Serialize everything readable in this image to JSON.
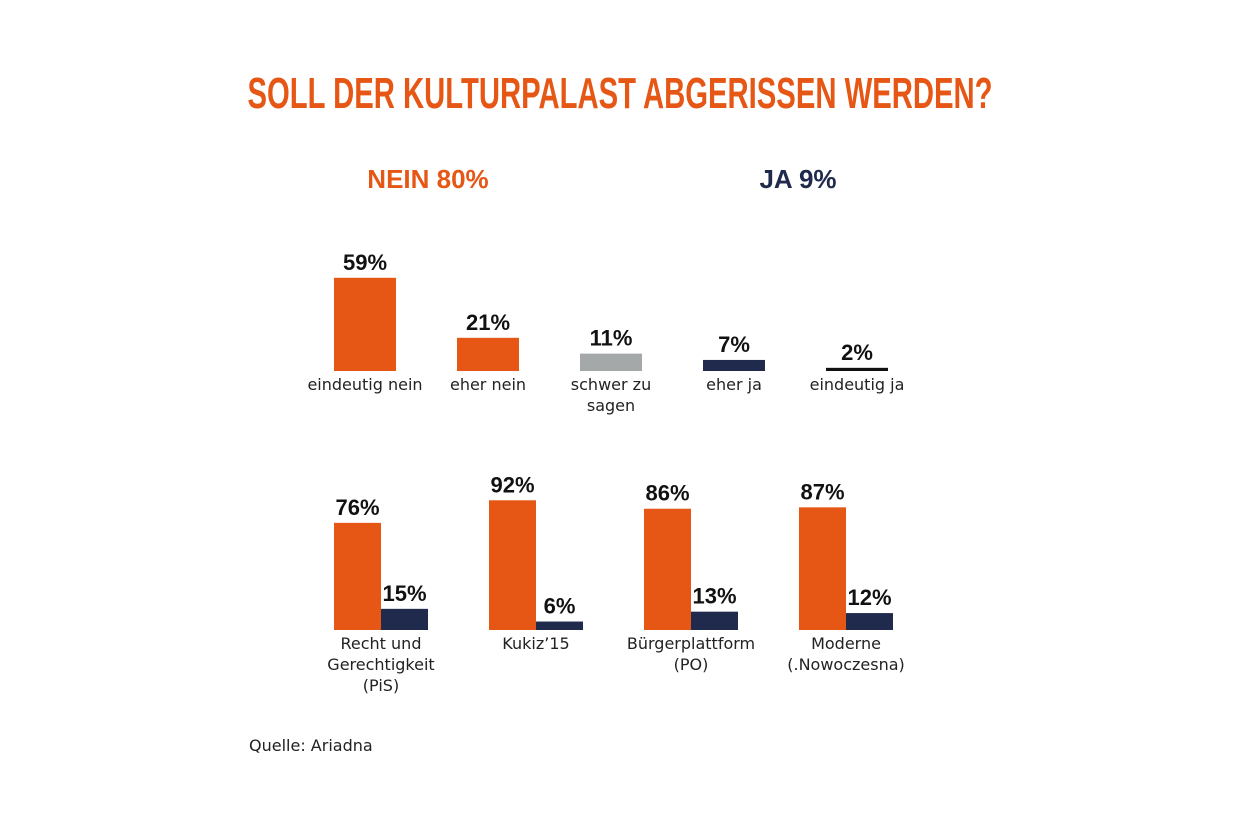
{
  "chart_data": [
    {
      "type": "bar",
      "title": "SOLL DER KULTURPALAST ABGERISSEN WERDEN?",
      "groups": [
        {
          "label": "NEIN 80%",
          "color": "#e65716"
        },
        {
          "label": "JA 9%",
          "color": "#1f2a4d"
        }
      ],
      "categories": [
        "eindeutig nein",
        "eher nein",
        "schwer zu sagen",
        "eher ja",
        "eindeutig ja"
      ],
      "values": [
        59,
        21,
        11,
        7,
        2
      ],
      "value_labels": [
        "59%",
        "21%",
        "11%",
        "7%",
        "2%"
      ],
      "colors": [
        "#e65716",
        "#e65716",
        "#a5a8a8",
        "#1f2a4d",
        "#111111"
      ],
      "unit": "%"
    },
    {
      "type": "bar",
      "categories": [
        "Recht und Gerechtigkeit (PiS)",
        "Kukiz’15",
        "Bürgerplattform (PO)",
        "Moderne (.Nowoczesna)"
      ],
      "series": [
        {
          "name": "Nein",
          "color": "#e65716",
          "values": [
            76,
            92,
            86,
            87
          ],
          "labels": [
            "76%",
            "92%",
            "86%",
            "87%"
          ]
        },
        {
          "name": "Ja",
          "color": "#1f2a4d",
          "values": [
            15,
            6,
            13,
            12
          ],
          "labels": [
            "15%",
            "6%",
            "13%",
            "12%"
          ]
        }
      ],
      "unit": "%"
    }
  ],
  "source": "Quelle: Ariadna"
}
